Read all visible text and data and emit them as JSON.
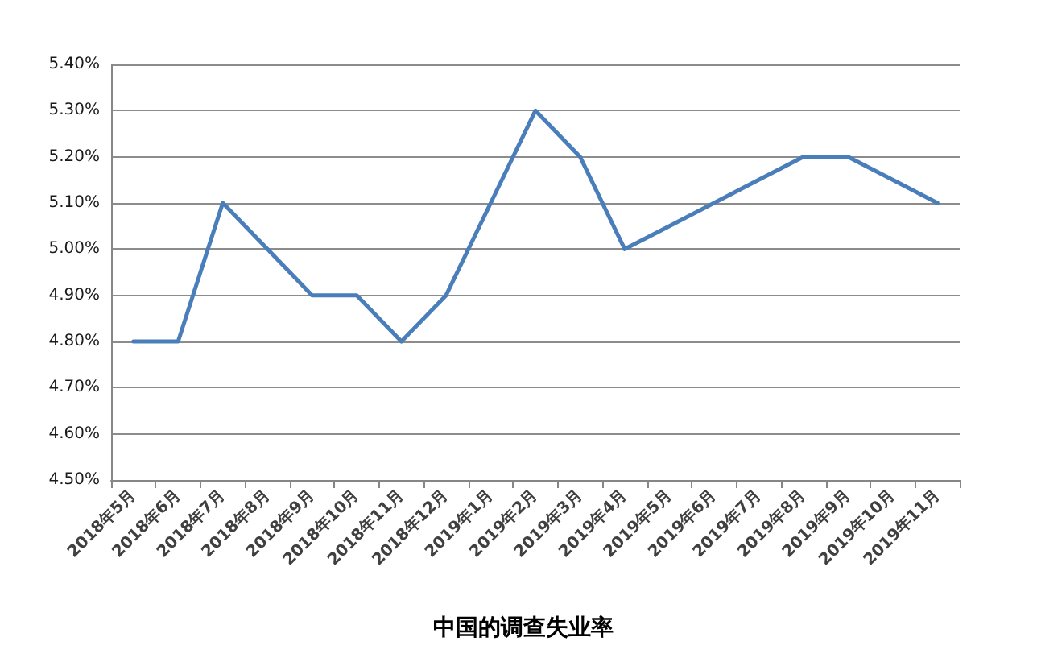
{
  "chart_data": {
    "type": "line",
    "title": "中国的调查失业率",
    "categories": [
      "2018年5月",
      "2018年6月",
      "2018年7月",
      "2018年8月",
      "2018年9月",
      "2018年10月",
      "2018年11月",
      "2018年12月",
      "2019年1月",
      "2019年2月",
      "2019年3月",
      "2019年4月",
      "2019年5月",
      "2019年6月",
      "2019年7月",
      "2019年8月",
      "2019年9月",
      "2019年10月",
      "2019年11月"
    ],
    "values": [
      4.8,
      4.8,
      5.1,
      5.0,
      4.9,
      4.9,
      4.8,
      4.9,
      5.1,
      5.3,
      5.2,
      5.0,
      5.05,
      5.1,
      5.15,
      5.2,
      5.2,
      5.15,
      5.1
    ],
    "color": "#4a7ebb",
    "ylim": [
      4.5,
      5.4
    ],
    "yticks": [
      {
        "value": 4.5,
        "label": "4.50%"
      },
      {
        "value": 4.6,
        "label": "4.60%"
      },
      {
        "value": 4.7,
        "label": "4.70%"
      },
      {
        "value": 4.8,
        "label": "4.80%"
      },
      {
        "value": 4.9,
        "label": "4.90%"
      },
      {
        "value": 5.0,
        "label": "5.00%"
      },
      {
        "value": 5.1,
        "label": "5.10%"
      },
      {
        "value": 5.2,
        "label": "5.20%"
      },
      {
        "value": 5.3,
        "label": "5.30%"
      },
      {
        "value": 5.4,
        "label": "5.40%"
      }
    ],
    "grid": "y",
    "marker": "none",
    "line_style": "solid"
  }
}
